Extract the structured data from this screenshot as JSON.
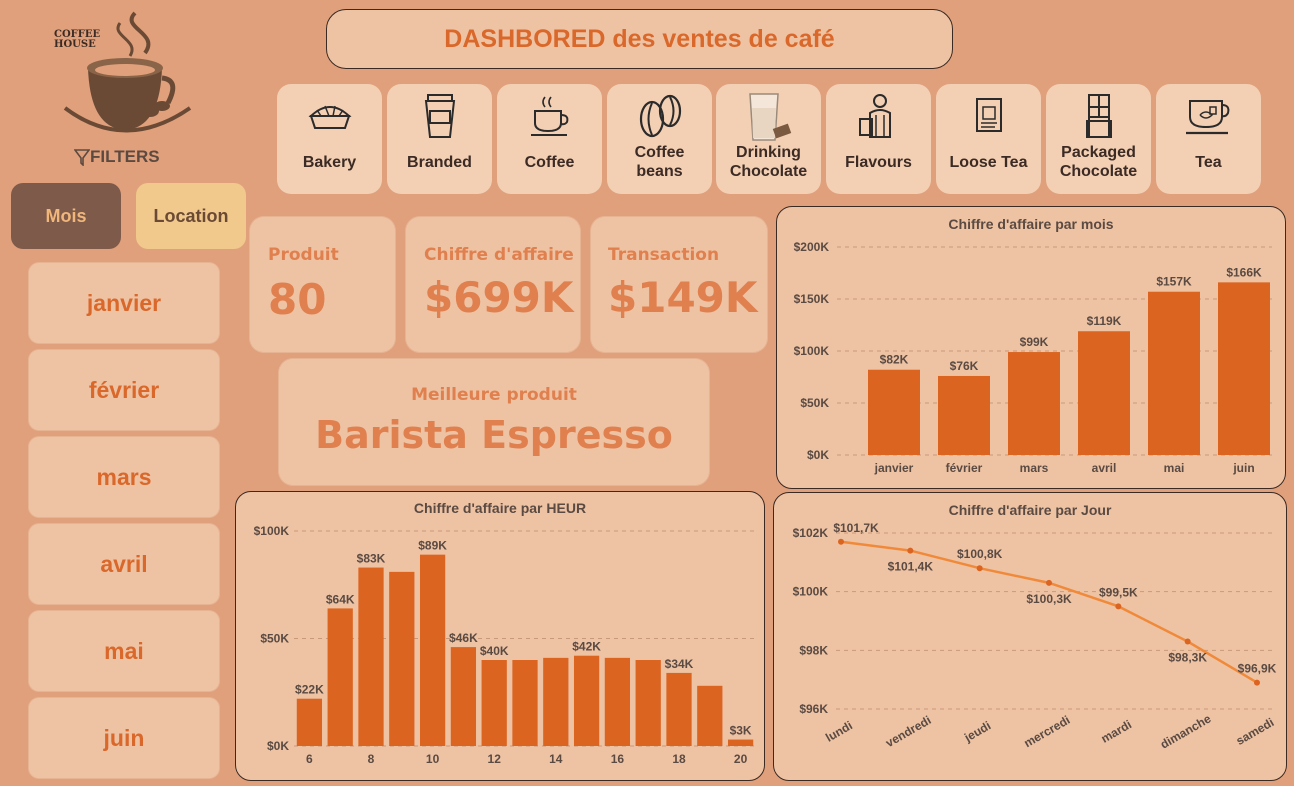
{
  "logo": {
    "line1": "COFFEE",
    "line2": "HOUSE"
  },
  "filters_label": "FILTERS",
  "title": "DASHBORED des ventes de café",
  "categories": [
    {
      "label": "Bakery",
      "icon": "pie-icon"
    },
    {
      "label": "Branded",
      "icon": "cup-icon"
    },
    {
      "label": "Coffee",
      "icon": "coffee-cup-icon"
    },
    {
      "label": "Coffee\nbeans",
      "icon": "coffee-beans-icon"
    },
    {
      "label": "Drinking\nChocolate",
      "icon": "glass-icon"
    },
    {
      "label": "Flavours",
      "icon": "barista-icon"
    },
    {
      "label": "Loose Tea",
      "icon": "tea-bag-icon"
    },
    {
      "label": "Packaged\nChocolate",
      "icon": "chocolate-bar-icon"
    },
    {
      "label": "Tea",
      "icon": "tea-cup-icon"
    }
  ],
  "tabs": {
    "mois": "Mois",
    "location": "Location"
  },
  "months": [
    "janvier",
    "février",
    "mars",
    "avril",
    "mai",
    "juin"
  ],
  "kpis": {
    "produit": {
      "label": "Produit",
      "value": "80"
    },
    "chiffre": {
      "label": "Chiffre d'affaire",
      "value": "$699K"
    },
    "transaction": {
      "label": "Transaction",
      "value": "$149K"
    },
    "best": {
      "label": "Meilleure produit",
      "value": "Barista Espresso"
    }
  },
  "colors": {
    "bar": "#dc6421",
    "line": "#f08a3a",
    "bg": "#e0a07c",
    "card": "#eec3a4"
  },
  "chart_data": [
    {
      "type": "bar",
      "title": "Chiffre d'affaire par mois",
      "categories": [
        "janvier",
        "février",
        "mars",
        "avril",
        "mai",
        "juin"
      ],
      "values": [
        82,
        76,
        99,
        119,
        157,
        166
      ],
      "data_labels": [
        "$82K",
        "$76K",
        "$99K",
        "$119K",
        "$157K",
        "$166K"
      ],
      "y_ticks": [
        "$0K",
        "$50K",
        "$100K",
        "$150K",
        "$200K"
      ],
      "ylim": [
        0,
        200
      ],
      "grid": true
    },
    {
      "type": "bar",
      "title": "Chiffre d'affaire par HEUR",
      "x": [
        6,
        7,
        8,
        9,
        10,
        11,
        12,
        13,
        14,
        15,
        16,
        17,
        18,
        19,
        20
      ],
      "x_tick_labels": [
        "6",
        "8",
        "10",
        "12",
        "14",
        "16",
        "18",
        "20"
      ],
      "values": [
        22,
        64,
        83,
        81,
        89,
        46,
        40,
        40,
        41,
        42,
        41,
        40,
        34,
        28,
        3
      ],
      "data_labels": [
        "$22K",
        "$64K",
        "$83K",
        "",
        "$89K",
        "$46K",
        "$40K",
        "",
        "",
        "$42K",
        "",
        "",
        "$34K",
        "",
        "$3K"
      ],
      "y_ticks": [
        "$0K",
        "$50K",
        "$100K"
      ],
      "ylim": [
        0,
        100
      ],
      "grid": true
    },
    {
      "type": "line",
      "title": "Chiffre d'affaire par Jour",
      "categories": [
        "lundi",
        "vendredi",
        "jeudi",
        "mercredi",
        "mardi",
        "dimanche",
        "samedi"
      ],
      "values": [
        101.7,
        101.4,
        100.8,
        100.3,
        99.5,
        98.3,
        96.9
      ],
      "data_labels": [
        "$101,7K",
        "$101,4K",
        "$100,8K",
        "$100,3K",
        "$99,5K",
        "$98,3K",
        "$96,9K"
      ],
      "y_ticks": [
        "$96K",
        "$98K",
        "$100K",
        "$102K"
      ],
      "ylim": [
        96,
        102
      ],
      "grid": true
    }
  ]
}
